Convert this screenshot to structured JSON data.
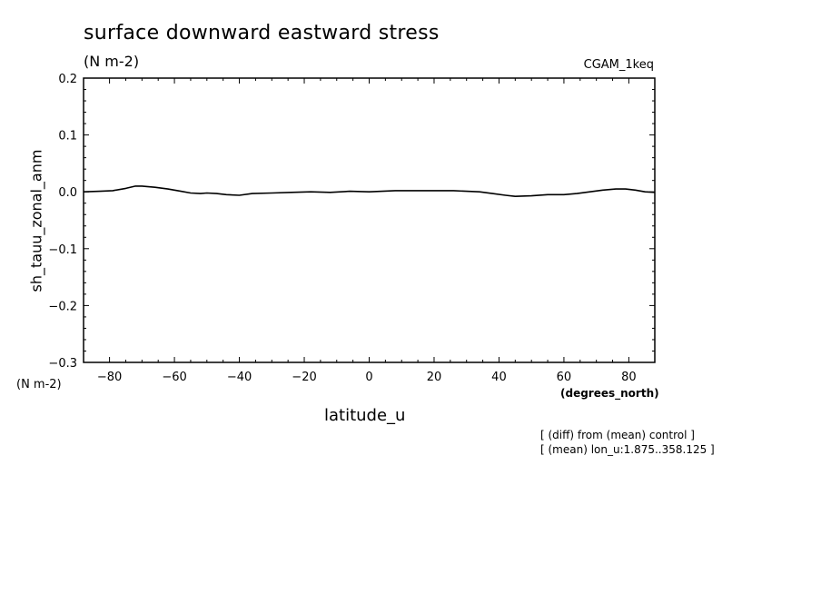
{
  "chart_data": {
    "type": "line",
    "title": "surface downward eastward stress",
    "units": "(N m-2)",
    "dataset_label": "CGAM_1keq",
    "ylabel": "sh_tauu_zonal_anm",
    "yunits": "(N m-2)",
    "xlabel": "latitude_u",
    "xunits": "(degrees_north)",
    "xlim": [
      -88,
      88
    ],
    "ylim": [
      -0.3,
      0.2
    ],
    "xticks": [
      -80,
      -60,
      -40,
      -20,
      0,
      20,
      40,
      60,
      80
    ],
    "xtick_labels": [
      "−80",
      "−60",
      "−40",
      "−20",
      "0",
      "20",
      "40",
      "60",
      "80"
    ],
    "yticks": [
      -0.3,
      -0.2,
      -0.1,
      0.0,
      0.1,
      0.2
    ],
    "ytick_labels": [
      "−0.3",
      "−0.2",
      "−0.1",
      "0.0",
      "0.1",
      "0.2"
    ],
    "grid": false,
    "series": [
      {
        "x": [
          -88,
          -83,
          -79,
          -75,
          -72,
          -70,
          -66,
          -62,
          -58,
          -55,
          -52,
          -50,
          -47,
          -44,
          -40,
          -36,
          -30,
          -24,
          -18,
          -12,
          -6,
          0,
          4,
          8,
          14,
          20,
          26,
          30,
          34,
          38,
          42,
          45,
          50,
          55,
          60,
          64,
          68,
          72,
          76,
          79,
          82,
          85,
          88
        ],
        "y": [
          0.0,
          0.001,
          0.002,
          0.006,
          0.01,
          0.01,
          0.008,
          0.005,
          0.001,
          -0.002,
          -0.003,
          -0.002,
          -0.003,
          -0.005,
          -0.006,
          -0.003,
          -0.002,
          -0.001,
          0.0,
          -0.001,
          0.001,
          0.0,
          0.001,
          0.002,
          0.002,
          0.002,
          0.002,
          0.001,
          0.0,
          -0.003,
          -0.006,
          -0.008,
          -0.007,
          -0.005,
          -0.005,
          -0.003,
          0.0,
          0.003,
          0.005,
          0.005,
          0.003,
          0.0,
          -0.001
        ]
      }
    ]
  },
  "notes": [
    "[ (diff) from (mean) control ]",
    "[ (mean) lon_u:1.875..358.125 ]"
  ]
}
